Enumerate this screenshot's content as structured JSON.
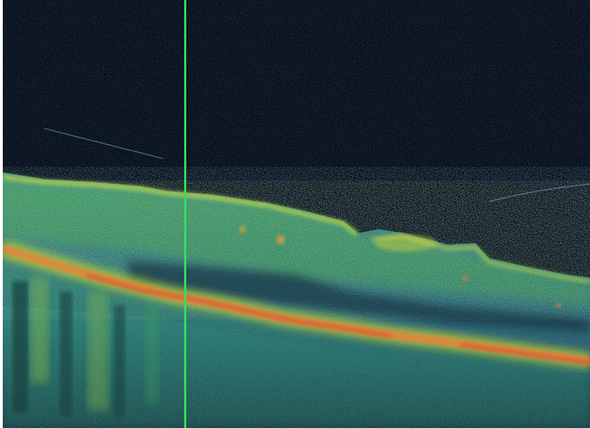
{
  "image": {
    "kind": "OCT B-scan, false-color",
    "background_color": "#070d1a",
    "palette": {
      "noise": "#3a6f85",
      "cyan": "#4fb3b8",
      "green": "#4caf50",
      "yellow": "#c8d23a",
      "orange": "#e8803a",
      "red": "#d8402c"
    },
    "cursor": {
      "color": "#33e05a"
    }
  }
}
